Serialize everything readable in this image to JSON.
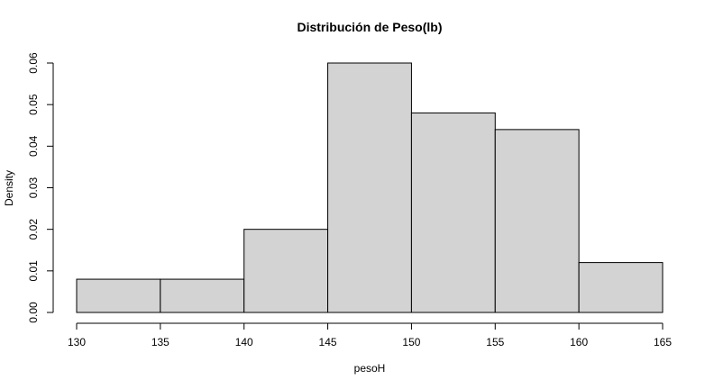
{
  "chart_data": {
    "type": "bar",
    "title": "Distribución de Peso(lb)",
    "xlabel": "pesoH",
    "ylabel": "Density",
    "bin_edges": [
      130,
      135,
      140,
      145,
      150,
      155,
      160,
      165
    ],
    "values": [
      0.008,
      0.008,
      0.02,
      0.06,
      0.048,
      0.044,
      0.012
    ],
    "xlim": [
      130,
      165
    ],
    "ylim": [
      0,
      0.06
    ],
    "x_ticks": [
      "130",
      "135",
      "140",
      "145",
      "150",
      "155",
      "160",
      "165"
    ],
    "y_ticks": [
      "0.00",
      "0.01",
      "0.02",
      "0.03",
      "0.04",
      "0.05",
      "0.06"
    ],
    "grid": false,
    "bar_color": "#d3d3d3",
    "edge_color": "#000000"
  }
}
